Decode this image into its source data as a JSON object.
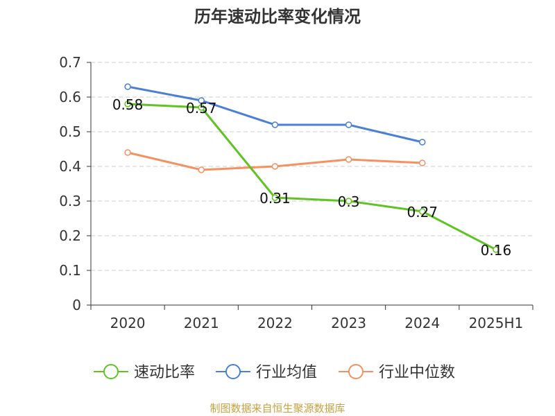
{
  "chart_data": {
    "type": "line",
    "title": "历年速动比率变化情况",
    "categories": [
      "2020",
      "2021",
      "2022",
      "2023",
      "2024",
      "2025H1"
    ],
    "ylim": [
      0,
      0.7
    ],
    "yticks": [
      "0",
      "0.1",
      "0.2",
      "0.3",
      "0.4",
      "0.5",
      "0.6",
      "0.7"
    ],
    "grid": true,
    "legend_position": "bottom",
    "series": [
      {
        "name": "速动比率",
        "color": "#5fc322",
        "values": [
          0.58,
          0.57,
          0.31,
          0.3,
          0.27,
          0.16
        ],
        "labels": [
          "0.58",
          "0.57",
          "0.31",
          "0.3",
          "0.27",
          "0.16"
        ]
      },
      {
        "name": "行业均值",
        "color": "#4a7fd4",
        "values": [
          0.63,
          0.59,
          0.52,
          0.52,
          0.47,
          null
        ]
      },
      {
        "name": "行业中位数",
        "color": "#f59060",
        "values": [
          0.44,
          0.39,
          0.4,
          0.42,
          0.41,
          null
        ]
      }
    ]
  },
  "source": "制图数据来自恒生聚源数据库"
}
